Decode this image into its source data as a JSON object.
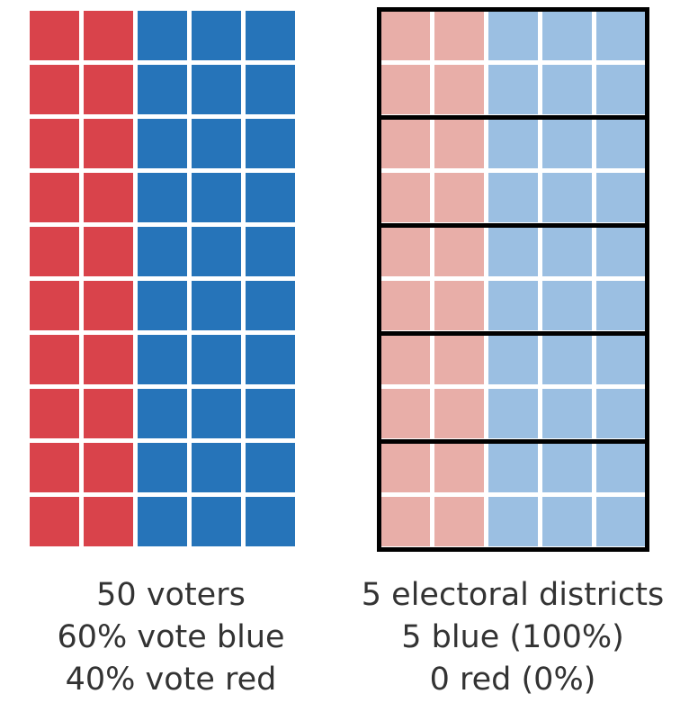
{
  "colors": {
    "red": "#d9434b",
    "blue": "#2674b9",
    "light_red": "#e8aea8",
    "light_blue": "#9bbfe2",
    "district_border": "#000000"
  },
  "left_panel": {
    "grid": {
      "rows": 10,
      "cols": 5,
      "red_cols": 2,
      "blue_cols": 3
    },
    "caption": [
      "50 voters",
      "60% vote blue",
      "40% vote red"
    ]
  },
  "right_panel": {
    "grid": {
      "rows": 10,
      "cols": 5,
      "red_cols": 2,
      "blue_cols": 3,
      "rows_per_district": 2
    },
    "district_count": 5,
    "caption": [
      "5 electoral districts",
      "5 blue (100%)",
      "0 red (0%)"
    ]
  }
}
